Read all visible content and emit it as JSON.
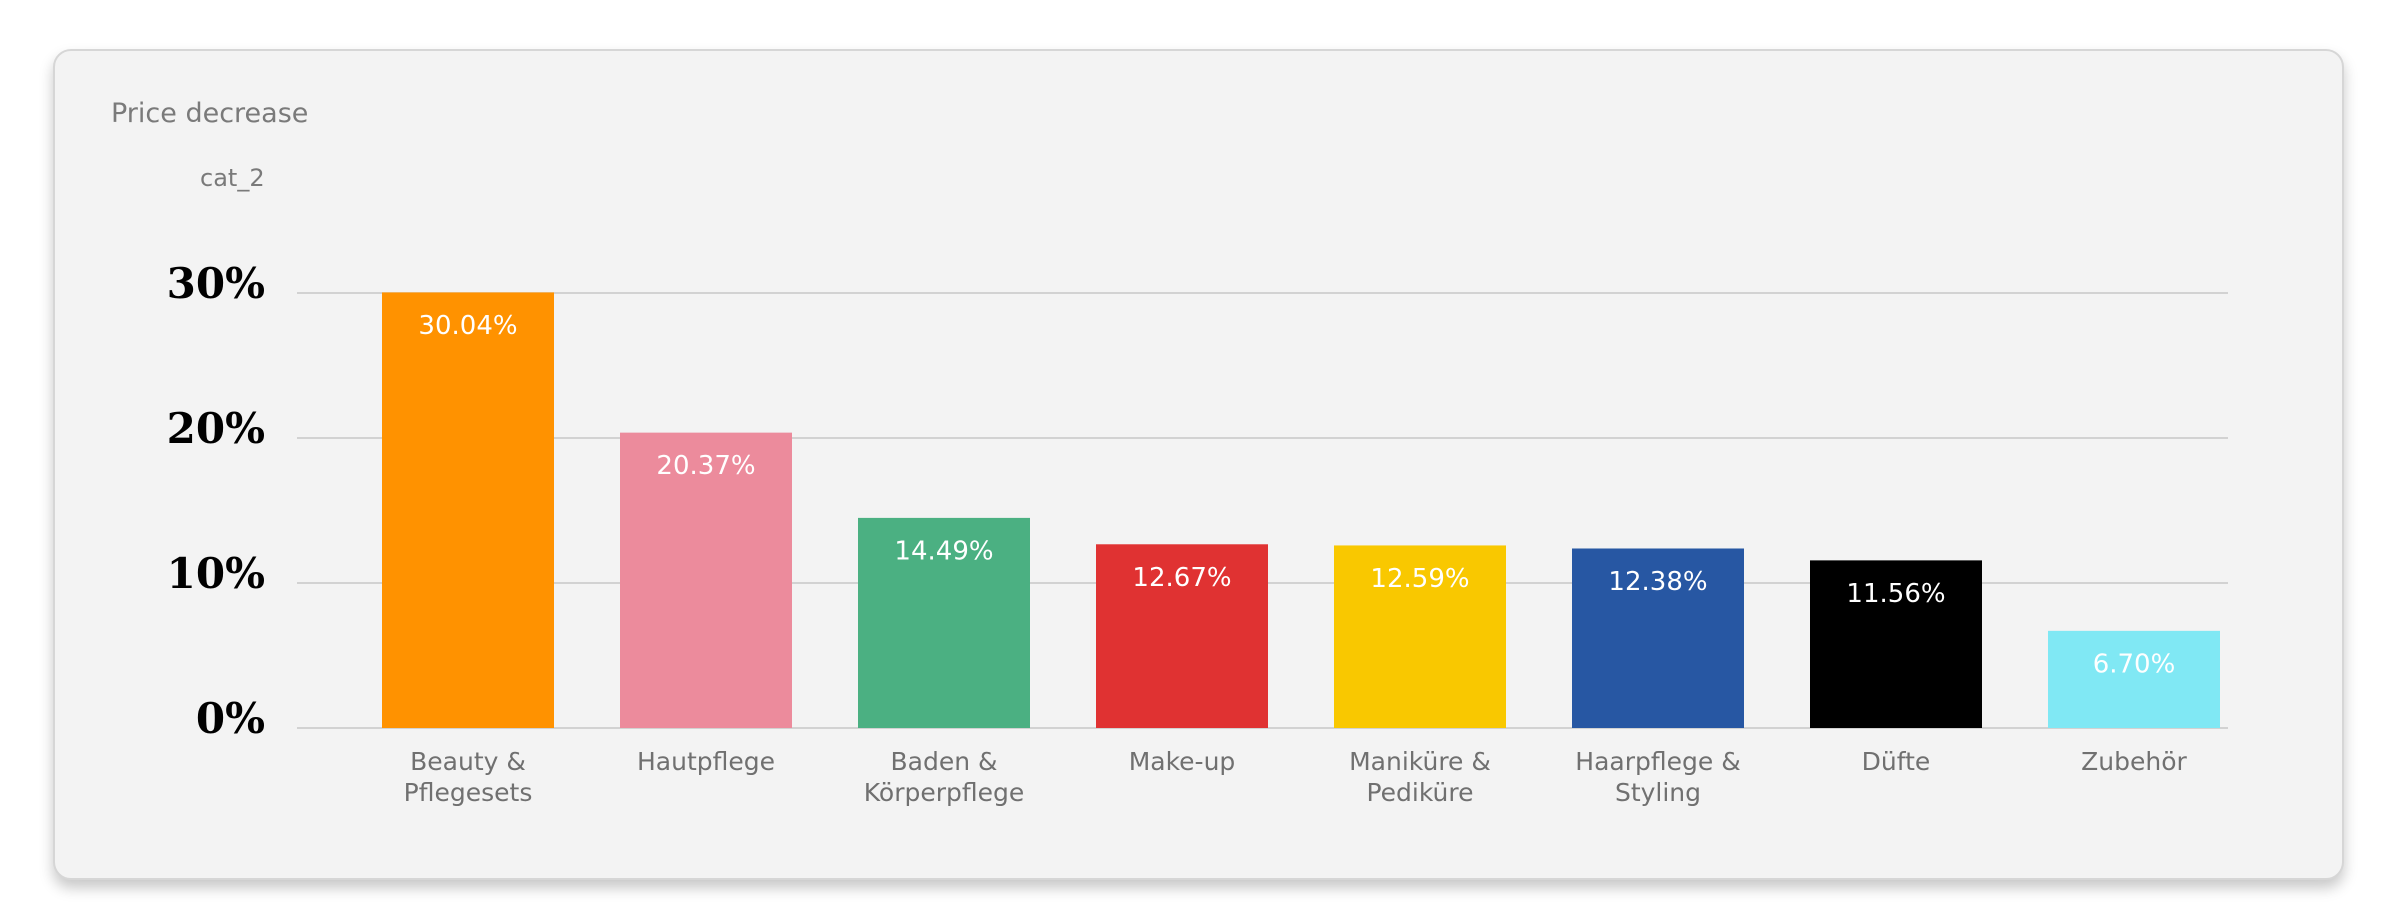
{
  "chart_data": {
    "type": "bar",
    "title": "Price decrease",
    "subtitle": "cat_2",
    "categories": [
      "Beauty & Pflegesets",
      "Hautpflege",
      "Baden & Körperpflege",
      "Make-up",
      "Maniküre & Pediküre",
      "Haarpflege & Styling",
      "Düfte",
      "Zubehör"
    ],
    "values": [
      30.04,
      20.37,
      14.49,
      12.67,
      12.59,
      12.38,
      11.56,
      6.7
    ],
    "value_labels": [
      "30.04%",
      "20.37%",
      "14.49%",
      "12.67%",
      "12.59%",
      "12.38%",
      "11.56%",
      "6.70%"
    ],
    "colors": [
      "#ff9200",
      "#ec8b9c",
      "#4bb082",
      "#e03232",
      "#f9c800",
      "#2757a3",
      "#000000",
      "#80e8f4"
    ],
    "ylim": [
      0,
      30
    ],
    "yticks": [
      {
        "value": 0,
        "label": "0%"
      },
      {
        "value": 10,
        "label": "10%"
      },
      {
        "value": 20,
        "label": "20%"
      },
      {
        "value": 30,
        "label": "30%"
      }
    ],
    "grid": true
  }
}
